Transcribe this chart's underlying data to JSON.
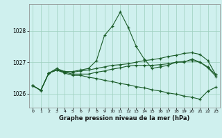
{
  "title": "Graphe pression niveau de la mer (hPa)",
  "bg_color": "#cff0ee",
  "grid_color": "#9ecfbe",
  "line_color": "#1a5c28",
  "xlim": [
    -0.5,
    23.5
  ],
  "ylim": [
    1025.55,
    1028.85
  ],
  "yticks": [
    1026,
    1027,
    1028
  ],
  "xticks": [
    0,
    1,
    2,
    3,
    4,
    5,
    6,
    7,
    8,
    9,
    10,
    11,
    12,
    13,
    14,
    15,
    16,
    17,
    18,
    19,
    20,
    21,
    22,
    23
  ],
  "series1": [
    1026.25,
    1026.1,
    1026.65,
    1026.8,
    1026.7,
    1026.7,
    1026.75,
    1026.8,
    1027.05,
    1027.85,
    1028.15,
    1028.6,
    1028.1,
    1027.5,
    1027.1,
    1026.8,
    1026.85,
    1026.9,
    1027.0,
    1027.0,
    1027.1,
    1027.0,
    1026.85,
    1026.6
  ],
  "series2": [
    1026.25,
    1026.1,
    1026.65,
    1026.75,
    1026.7,
    1026.68,
    1026.72,
    1026.75,
    1026.8,
    1026.85,
    1026.9,
    1026.92,
    1026.95,
    1027.0,
    1027.05,
    1027.08,
    1027.12,
    1027.18,
    1027.22,
    1027.28,
    1027.3,
    1027.25,
    1027.05,
    1026.6
  ],
  "series3": [
    1026.25,
    1026.1,
    1026.65,
    1026.75,
    1026.65,
    1026.58,
    1026.58,
    1026.52,
    1026.48,
    1026.42,
    1026.38,
    1026.32,
    1026.28,
    1026.22,
    1026.18,
    1026.12,
    1026.08,
    1026.02,
    1025.98,
    1025.92,
    1025.88,
    1025.82,
    1026.08,
    1026.2
  ],
  "series4": [
    1026.25,
    1026.1,
    1026.65,
    1026.75,
    1026.68,
    1026.62,
    1026.62,
    1026.62,
    1026.68,
    1026.72,
    1026.78,
    1026.82,
    1026.88,
    1026.9,
    1026.9,
    1026.9,
    1026.92,
    1026.95,
    1027.0,
    1027.02,
    1027.05,
    1027.0,
    1026.82,
    1026.55
  ]
}
